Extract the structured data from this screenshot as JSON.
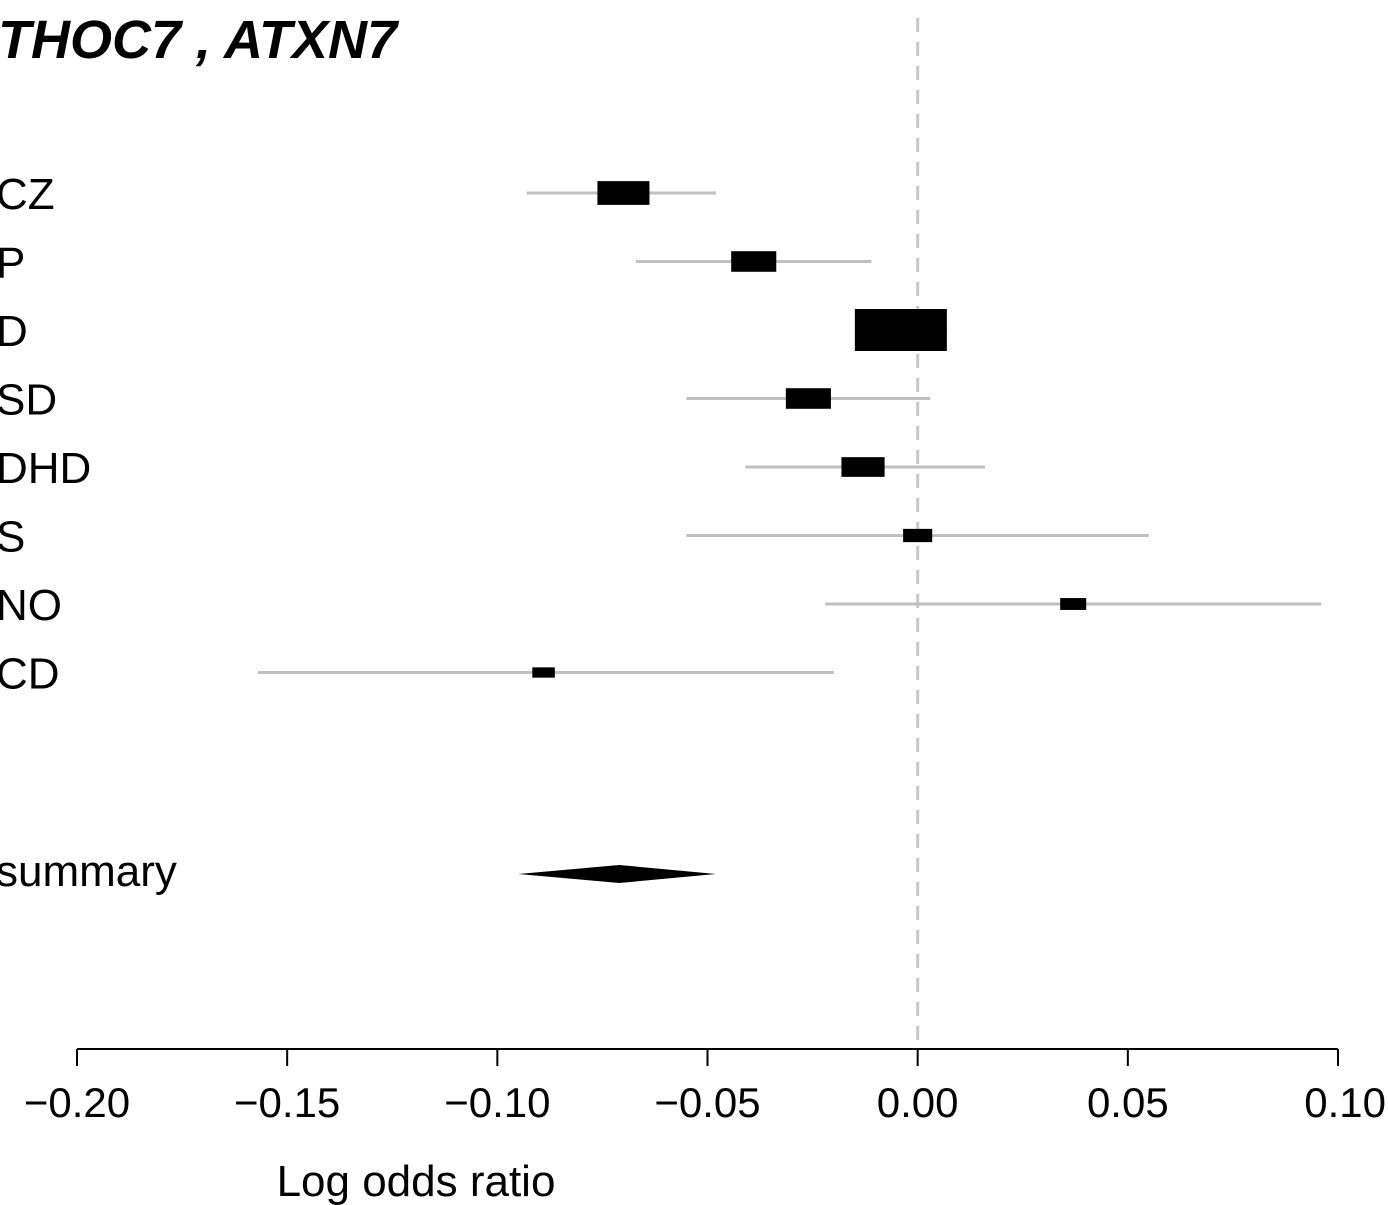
{
  "chart_data": {
    "type": "forest",
    "title": "THOC7 ,  ATXN7",
    "xlabel": "Log odds ratio",
    "xlim": [
      -0.2,
      0.1
    ],
    "xticks": [
      -0.2,
      -0.15,
      -0.1,
      -0.05,
      0.0,
      0.05,
      0.1
    ],
    "xtick_labels": [
      "−0.20",
      "−0.15",
      "−0.10",
      "−0.05",
      "0.00",
      "0.05",
      "0.10"
    ],
    "reference_line": 0.0,
    "studies": [
      {
        "label": "CZ",
        "estimate": -0.07,
        "lower": -0.093,
        "upper": -0.048,
        "weight": 0.32
      },
      {
        "label": "P",
        "estimate": -0.039,
        "lower": -0.067,
        "upper": -0.011,
        "weight": 0.24
      },
      {
        "label": "D",
        "estimate": -0.004,
        "lower": -0.014,
        "upper": 0.007,
        "weight": 1.0
      },
      {
        "label": "SD",
        "estimate": -0.026,
        "lower": -0.055,
        "upper": 0.003,
        "weight": 0.24
      },
      {
        "label": "DHD",
        "estimate": -0.013,
        "lower": -0.041,
        "upper": 0.016,
        "weight": 0.22
      },
      {
        "label": "S",
        "estimate": 0.0,
        "lower": -0.055,
        "upper": 0.055,
        "weight": 0.1
      },
      {
        "label": "NO",
        "estimate": 0.037,
        "lower": -0.022,
        "upper": 0.096,
        "weight": 0.08
      },
      {
        "label": "CD",
        "estimate": -0.089,
        "lower": -0.157,
        "upper": -0.02,
        "weight": 0.06
      }
    ],
    "summary": {
      "label": "summary",
      "estimate": -0.071,
      "lower": -0.095,
      "upper": -0.048
    },
    "colors": {
      "box": "#000000",
      "ci_line": "#c0c0c0",
      "reference_line": "#c8c8c8",
      "summary": "#000000"
    }
  }
}
